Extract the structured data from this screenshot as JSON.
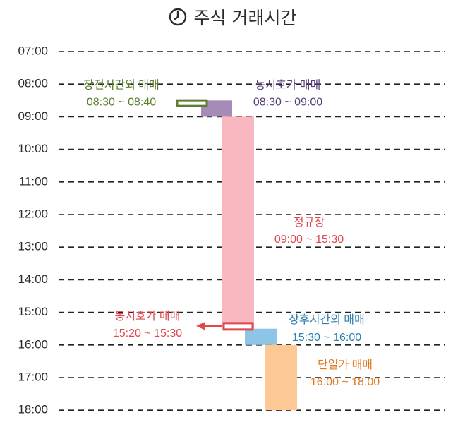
{
  "title": {
    "text": "주식 거래시간",
    "icon": "clock-icon"
  },
  "chart_data": {
    "type": "timeline",
    "title": "주식 거래시간",
    "time_axis": {
      "ticks": [
        "07:00",
        "08:00",
        "09:00",
        "10:00",
        "11:00",
        "12:00",
        "13:00",
        "14:00",
        "15:00",
        "16:00",
        "17:00",
        "18:00"
      ],
      "range": [
        "07:00",
        "18:00"
      ],
      "gridlines": "dashed"
    },
    "sessions": [
      {
        "id": "pre-market-off-hours",
        "name": "장전시간외 매매",
        "time_label": "08:30 ~ 08:40",
        "start": "08:30",
        "end": "08:40",
        "style": "outline-bar",
        "color": "#5b7f2f",
        "label_color": "#5b7f2f",
        "label_side": "left",
        "column": "left"
      },
      {
        "id": "opening-call-auction",
        "name": "동시호가 매매",
        "time_label": "08:30 ~ 09:00",
        "start": "08:30",
        "end": "09:00",
        "style": "block",
        "color": "#a68bb7",
        "label_color": "#5b3f7a",
        "label_side": "right",
        "column": "col1"
      },
      {
        "id": "regular-session",
        "name": "정규장",
        "time_label": "09:00 ~ 15:30",
        "start": "09:00",
        "end": "15:30",
        "style": "block",
        "color": "#f9b8c0",
        "label_color": "#e0474f",
        "label_side": "right",
        "column": "col2"
      },
      {
        "id": "closing-call-auction",
        "name": "동시호가 매매",
        "time_label": "15:20 ~ 15:30",
        "start": "15:20",
        "end": "15:30",
        "style": "outline-bar-arrow",
        "color": "#e0474f",
        "label_color": "#e0474f",
        "label_side": "left",
        "column": "col2"
      },
      {
        "id": "after-hours-closing",
        "name": "장후시간외 매매",
        "time_label": "15:30 ~ 16:00",
        "start": "15:30",
        "end": "16:00",
        "style": "block",
        "color": "#8ec5e6",
        "label_color": "#2e7fb0",
        "label_side": "right",
        "column": "col3"
      },
      {
        "id": "single-price-trading",
        "name": "단일가 매매",
        "time_label": "16:00 ~ 18:00",
        "start": "16:00",
        "end": "18:00",
        "style": "block",
        "color": "#fcc995",
        "label_color": "#e07a22",
        "label_side": "right",
        "column": "col4"
      }
    ]
  }
}
